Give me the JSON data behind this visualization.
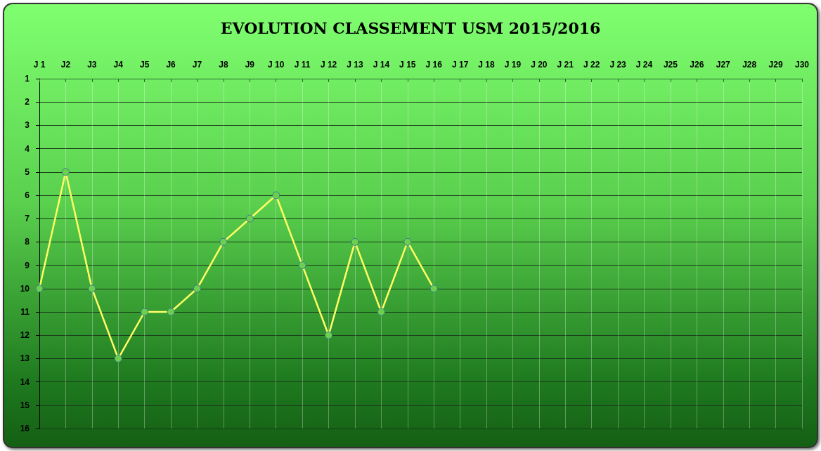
{
  "chart_data": {
    "type": "line",
    "title": "EVOLUTION CLASSEMENT USM 2015/2016",
    "categories": [
      "J 1",
      "J2",
      "J3",
      "J4",
      "J5",
      "J6",
      "J7",
      "J8",
      "J9",
      "J 10",
      "J 11",
      "J 12",
      "J 13",
      "J 14",
      "J 15",
      "J 16",
      "J 17",
      "J 18",
      "J 19",
      "J 20",
      "J 21",
      "J 22",
      "J 23",
      "J 24",
      "J25",
      "J26",
      "J27",
      "J28",
      "J29",
      "J30"
    ],
    "series": [
      {
        "color": "#ffff66",
        "values": [
          10,
          5,
          10,
          13,
          11,
          11,
          10,
          8,
          7,
          6,
          9,
          12,
          8,
          11,
          8,
          10,
          null,
          null,
          null,
          null,
          null,
          null,
          null,
          null,
          null,
          null,
          null,
          null,
          null,
          null
        ]
      }
    ],
    "ylim": [
      16,
      1
    ],
    "yticks": [
      1,
      2,
      3,
      4,
      5,
      6,
      7,
      8,
      9,
      10,
      11,
      12,
      13,
      14,
      15,
      16
    ],
    "grid": true,
    "marker": "circle",
    "line_style": "solid"
  }
}
